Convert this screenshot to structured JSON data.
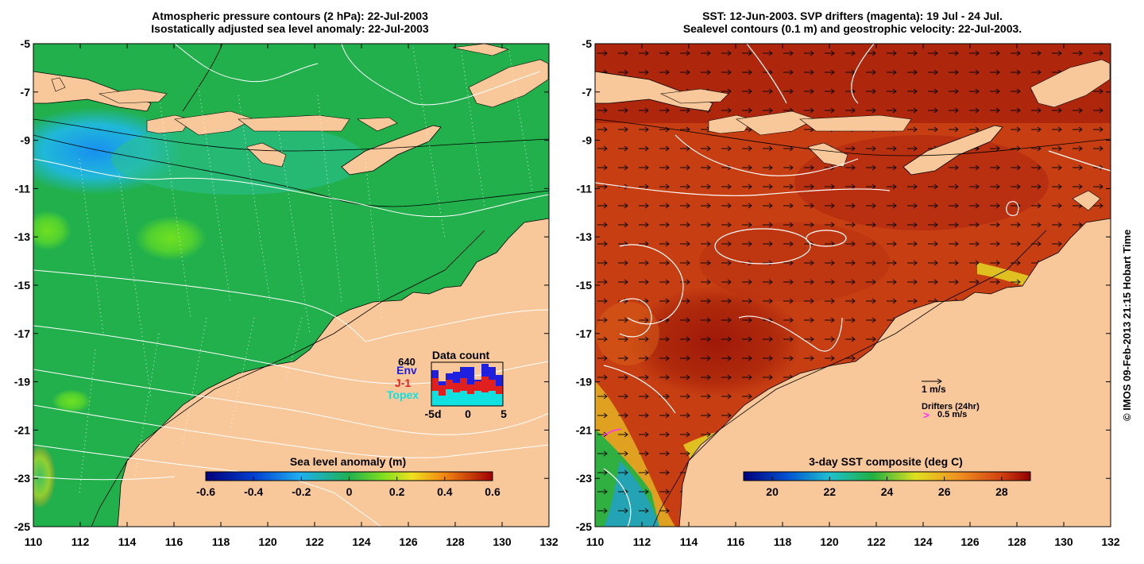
{
  "left_panel": {
    "title_line1": "Atmospheric pressure contours (2 hPa): 22-Jul-2003",
    "title_line2": "Isostatically adjusted sea level anomaly: 22-Jul-2003",
    "colorbar": {
      "label": "Sea level anomaly (m)",
      "ticks": [
        "-0.6",
        "-0.4",
        "-0.2",
        "0",
        "0.2",
        "0.4",
        "0.6"
      ],
      "range": [
        -0.6,
        0.6
      ]
    },
    "data_count": {
      "title": "Data count",
      "max_label": "640",
      "series": [
        {
          "name": "Env",
          "color": "#1f1fe0"
        },
        {
          "name": "J-1",
          "color": "#e01f1f"
        },
        {
          "name": "Topex",
          "color": "#10e0e0"
        }
      ],
      "x_labels": [
        "-5d",
        "0",
        "5"
      ]
    }
  },
  "right_panel": {
    "title_line1": "SST: 12-Jun-2003. SVP drifters (magenta): 19 Jul - 24 Jul.",
    "title_line2": "Sealevel contours (0.1 m) and geostrophic velocity: 22-Jul-2003.",
    "colorbar": {
      "label": "3-day SST composite (deg C)",
      "ticks": [
        "20",
        "22",
        "24",
        "26",
        "28"
      ],
      "range": [
        19,
        29
      ]
    },
    "velocity_legend": "1 m/s",
    "drifters_legend": "Drifters (24hr)",
    "drifter_speed": "0.5 m/s",
    "drifter_marker": ">"
  },
  "axes": {
    "lon_ticks": [
      "110",
      "112",
      "114",
      "116",
      "118",
      "120",
      "122",
      "124",
      "126",
      "128",
      "130",
      "132"
    ],
    "lat_ticks": [
      "-5",
      "-7",
      "-9",
      "-11",
      "-13",
      "-15",
      "-17",
      "-19",
      "-21",
      "-23",
      "-25"
    ],
    "lon_range": [
      110,
      132
    ],
    "lat_range": [
      -25,
      -5
    ]
  },
  "credit": "© IMOS 09-Feb-2013 21:15 Hobart Time",
  "colors": {
    "land": "#f9c89a",
    "ocean_green": "#20b048",
    "sst_red": "#c23a10"
  }
}
